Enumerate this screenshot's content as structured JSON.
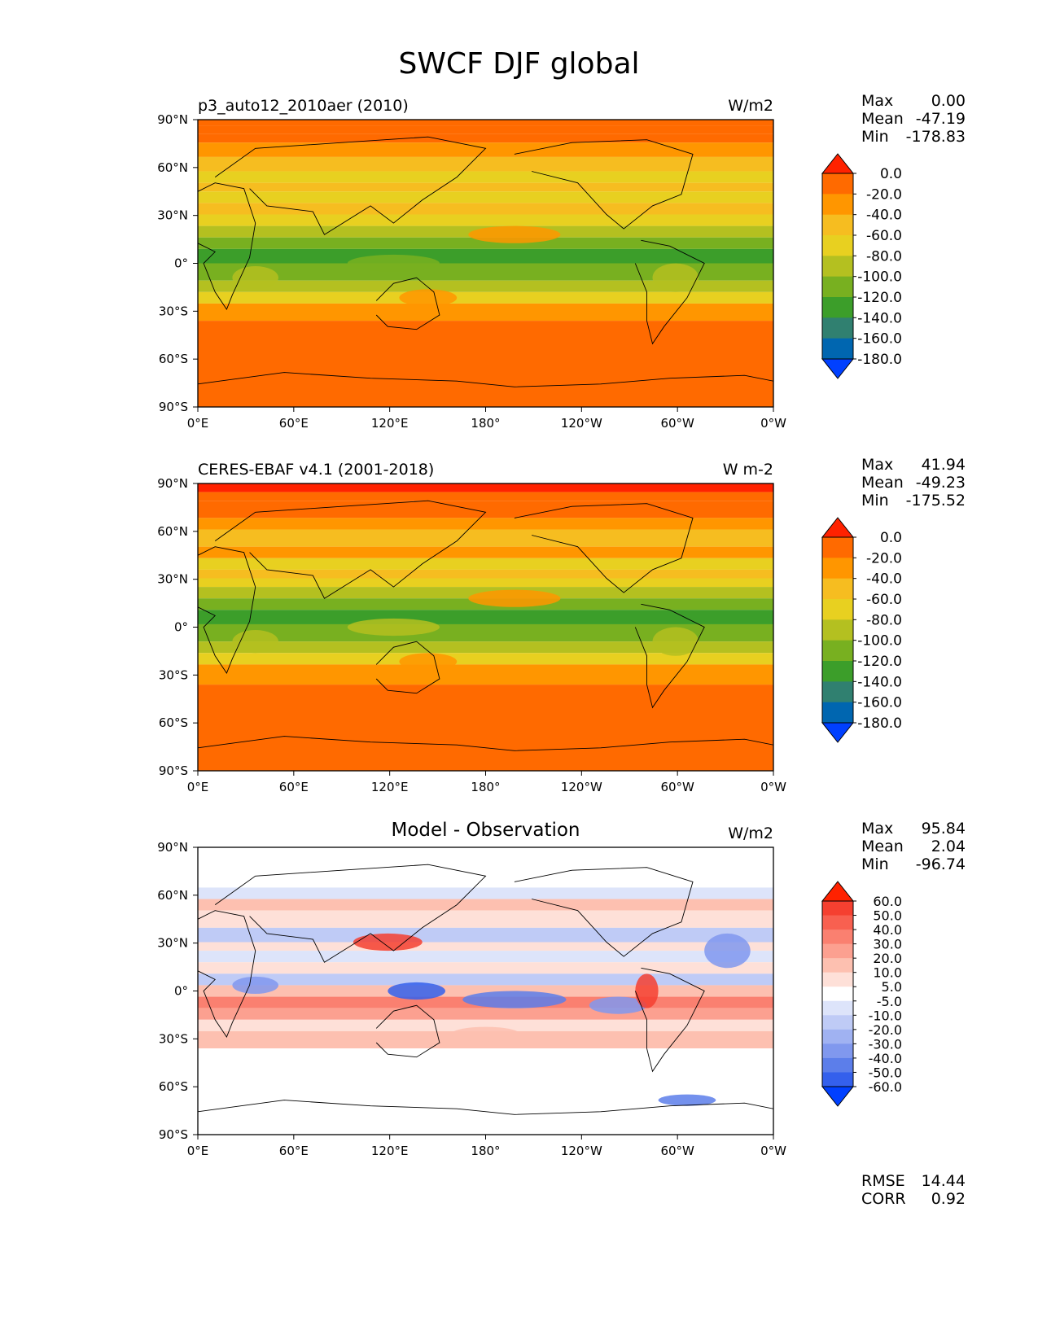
{
  "title": "SWCF DJF global",
  "chart_data": [
    {
      "type": "heatmap",
      "title": "p3_auto12_2010aer (2010)",
      "units": "W/m2",
      "stats": {
        "max_label": "Max",
        "max": "0.00",
        "mean_label": "Mean",
        "mean": "-47.19",
        "min_label": "Min",
        "min": "-178.83"
      },
      "xticks": [
        "0°E",
        "60°E",
        "120°E",
        "180°",
        "120°W",
        "60°W",
        "0°W"
      ],
      "yticks": [
        "90°N",
        "60°N",
        "30°N",
        "0°",
        "30°S",
        "60°S",
        "90°S"
      ],
      "xlim": [
        0,
        360
      ],
      "ylim": [
        -90,
        90
      ],
      "colorbar": {
        "levels": [
          "0.0",
          "-20.0",
          "-40.0",
          "-60.0",
          "-80.0",
          "-100.0",
          "-120.0",
          "-140.0",
          "-160.0",
          "-180.0"
        ],
        "colors": [
          "#ff2200",
          "#ff6a00",
          "#ff9600",
          "#f6bd20",
          "#e8d020",
          "#b4c020",
          "#78b020",
          "#3c9e2a",
          "#308070",
          "#0066b0",
          "#0040ff"
        ]
      }
    },
    {
      "type": "heatmap",
      "title": "CERES-EBAF v4.1 (2001-2018)",
      "units": "W m-2",
      "stats": {
        "max_label": "Max",
        "max": "41.94",
        "mean_label": "Mean",
        "mean": "-49.23",
        "min_label": "Min",
        "min": "-175.52"
      },
      "xticks": [
        "0°E",
        "60°E",
        "120°E",
        "180°",
        "120°W",
        "60°W",
        "0°W"
      ],
      "yticks": [
        "90°N",
        "60°N",
        "30°N",
        "0°",
        "30°S",
        "60°S",
        "90°S"
      ],
      "xlim": [
        0,
        360
      ],
      "ylim": [
        -90,
        90
      ],
      "colorbar": {
        "levels": [
          "0.0",
          "-20.0",
          "-40.0",
          "-60.0",
          "-80.0",
          "-100.0",
          "-120.0",
          "-140.0",
          "-160.0",
          "-180.0"
        ],
        "colors": [
          "#ff2200",
          "#ff6a00",
          "#ff9600",
          "#f6bd20",
          "#e8d020",
          "#b4c020",
          "#78b020",
          "#3c9e2a",
          "#308070",
          "#0066b0",
          "#0040ff"
        ]
      }
    },
    {
      "type": "heatmap",
      "title": "Model - Observation",
      "units": "W/m2",
      "stats": {
        "max_label": "Max",
        "max": "95.84",
        "mean_label": "Mean",
        "mean": "2.04",
        "min_label": "Min",
        "min": "-96.74"
      },
      "error": {
        "rmse_label": "RMSE",
        "rmse": "14.44",
        "corr_label": "CORR",
        "corr": "0.92"
      },
      "xticks": [
        "0°E",
        "60°E",
        "120°E",
        "180°",
        "120°W",
        "60°W",
        "0°W"
      ],
      "yticks": [
        "90°N",
        "60°N",
        "30°N",
        "0°",
        "30°S",
        "60°S",
        "90°S"
      ],
      "xlim": [
        0,
        360
      ],
      "ylim": [
        -90,
        90
      ],
      "colorbar": {
        "levels": [
          "60.0",
          "50.0",
          "40.0",
          "30.0",
          "20.0",
          "10.0",
          "5.0",
          "-5.0",
          "-10.0",
          "-20.0",
          "-30.0",
          "-40.0",
          "-50.0",
          "-60.0"
        ],
        "colors": [
          "#ff2200",
          "#f54030",
          "#f86050",
          "#fa8070",
          "#fca090",
          "#fdc0b0",
          "#fee0d8",
          "#ffffff",
          "#dde4fa",
          "#bfcbf6",
          "#a0b2f2",
          "#8098ee",
          "#5c7eea",
          "#3460ec",
          "#0040ff"
        ]
      }
    }
  ]
}
